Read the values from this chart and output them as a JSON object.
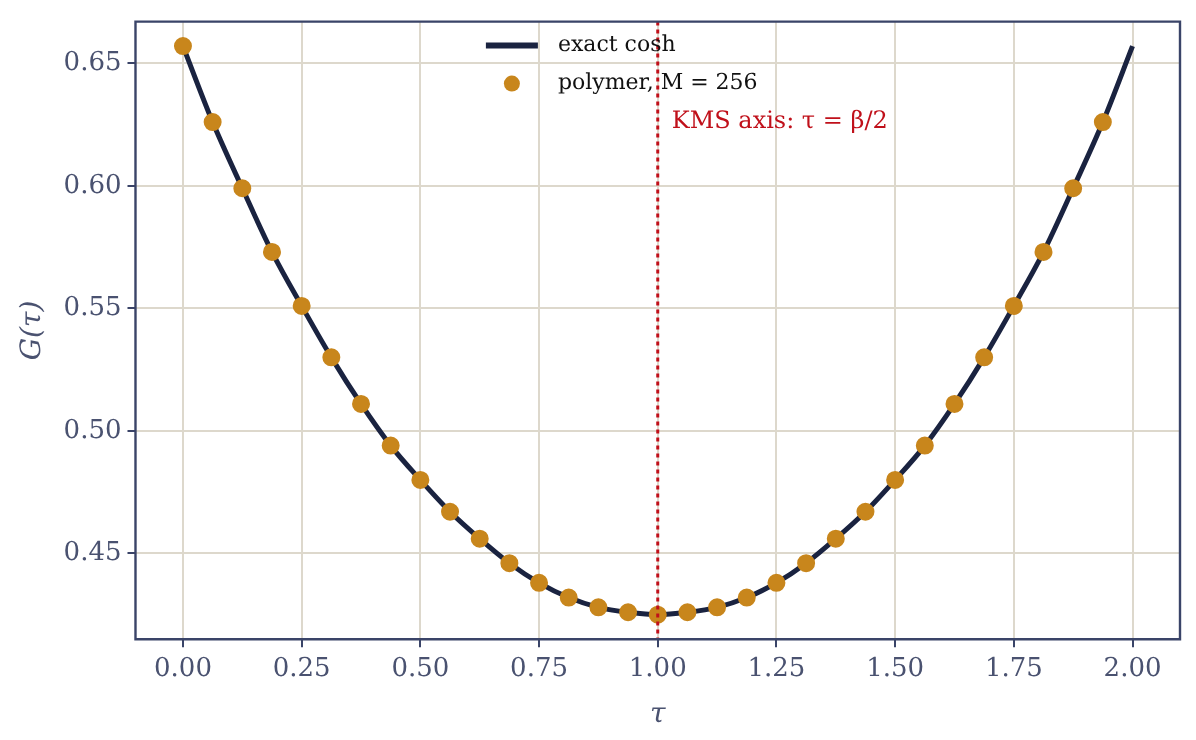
{
  "chart_data": {
    "type": "line",
    "xlabel": "τ",
    "ylabel": "G(τ)",
    "xlim": [
      -0.1,
      2.1
    ],
    "ylim": [
      0.415,
      0.667
    ],
    "xticks": [
      {
        "value": 0,
        "label": "0.00"
      },
      {
        "value": 0.25,
        "label": "0.25"
      },
      {
        "value": 0.5,
        "label": "0.50"
      },
      {
        "value": 0.75,
        "label": "0.75"
      },
      {
        "value": 1,
        "label": "1.00"
      },
      {
        "value": 1.25,
        "label": "1.25"
      },
      {
        "value": 1.5,
        "label": "1.50"
      },
      {
        "value": 1.75,
        "label": "1.75"
      },
      {
        "value": 2,
        "label": "2.00"
      }
    ],
    "yticks": [
      {
        "value": 0.45,
        "label": "0.45"
      },
      {
        "value": 0.5,
        "label": "0.50"
      },
      {
        "value": 0.55,
        "label": "0.55"
      },
      {
        "value": 0.6,
        "label": "0.60"
      },
      {
        "value": 0.65,
        "label": "0.65"
      }
    ],
    "grid": true,
    "legend": "top",
    "series": [
      {
        "name": "exact cosh",
        "color": "#1a2340",
        "marker": "none",
        "line_style": "solid",
        "x": [
          0,
          0.0625,
          0.125,
          0.1875,
          0.25,
          0.3125,
          0.375,
          0.4375,
          0.5,
          0.5625,
          0.625,
          0.6875,
          0.75,
          0.8125,
          0.875,
          0.9375,
          1,
          1.0625,
          1.125,
          1.1875,
          1.25,
          1.3125,
          1.375,
          1.4375,
          1.5,
          1.5625,
          1.625,
          1.6875,
          1.75,
          1.8125,
          1.875,
          1.9375,
          2
        ],
        "values": [
          0.657,
          0.626,
          0.599,
          0.573,
          0.551,
          0.53,
          0.511,
          0.494,
          0.48,
          0.467,
          0.456,
          0.446,
          0.438,
          0.432,
          0.428,
          0.426,
          0.425,
          0.426,
          0.428,
          0.432,
          0.438,
          0.446,
          0.456,
          0.467,
          0.48,
          0.494,
          0.511,
          0.53,
          0.551,
          0.573,
          0.599,
          0.626,
          0.657
        ]
      },
      {
        "name": "polymer, M = 256",
        "type": "scatter",
        "color": "#c8861c",
        "marker": "circle",
        "x": [
          0,
          0.0625,
          0.125,
          0.1875,
          0.25,
          0.3125,
          0.375,
          0.4375,
          0.5,
          0.5625,
          0.625,
          0.6875,
          0.75,
          0.8125,
          0.875,
          0.9375,
          1,
          1.0625,
          1.125,
          1.1875,
          1.25,
          1.3125,
          1.375,
          1.4375,
          1.5,
          1.5625,
          1.625,
          1.6875,
          1.75,
          1.8125,
          1.875,
          1.9375
        ],
        "values": [
          0.657,
          0.626,
          0.599,
          0.573,
          0.551,
          0.53,
          0.511,
          0.494,
          0.48,
          0.467,
          0.456,
          0.446,
          0.438,
          0.432,
          0.428,
          0.426,
          0.425,
          0.426,
          0.428,
          0.432,
          0.438,
          0.446,
          0.456,
          0.467,
          0.48,
          0.494,
          0.511,
          0.53,
          0.551,
          0.573,
          0.599,
          0.626
        ]
      }
    ],
    "ref_lines": [
      {
        "axis": "x",
        "value": 1,
        "label": "KMS axis: τ = β/2",
        "color": "#c0101a",
        "line_style": "dotted"
      }
    ]
  }
}
